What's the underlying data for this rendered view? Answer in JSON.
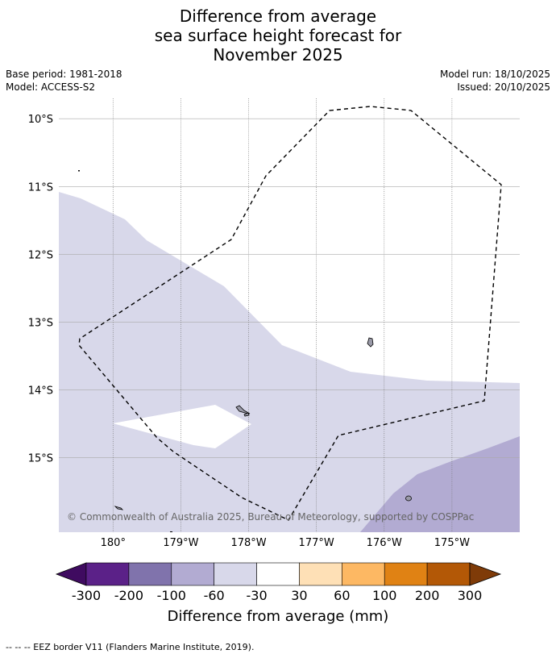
{
  "title": {
    "line1": "Difference from average",
    "line2": "sea surface height forecast for",
    "line3": "November 2025"
  },
  "meta": {
    "base_period": "Base period: 1981-2018",
    "model": "Model: ACCESS-S2",
    "model_run": "Model run: 18/10/2025",
    "issued": "Issued: 20/10/2025"
  },
  "map": {
    "lat_labels": [
      "10°S",
      "11°S",
      "12°S",
      "13°S",
      "14°S",
      "15°S"
    ],
    "lon_labels": [
      "180°",
      "179°W",
      "178°W",
      "177°W",
      "176°W",
      "175°W"
    ],
    "lat_values": [
      -10,
      -11,
      -12,
      -13,
      -14,
      -15
    ],
    "lon_values": [
      180,
      -179,
      -178,
      -177,
      -176,
      -175
    ],
    "extent": {
      "lon_min": -180.8,
      "lon_max": -174.0,
      "lat_min": -16.1,
      "lat_max": -9.7
    },
    "copyright": "© Commonwealth of Australia 2025, Bureau of Meteorology, supported by COSPPac",
    "colors": {
      "ocean": "#ffffff",
      "band_neg60_neg30": "#d8d8ea",
      "band_neg100_neg60": "#b2abd2",
      "land": "#9a9aa8",
      "eez_line": "#000000",
      "grid": "#aaaaaa"
    }
  },
  "colorbar": {
    "label": "Difference from average (mm)",
    "ticks": [
      "-300",
      "-200",
      "-100",
      "-60",
      "-30",
      "30",
      "60",
      "100",
      "200",
      "300"
    ],
    "colors": [
      "#3f0b60",
      "#5b2188",
      "#8073ac",
      "#b2abd2",
      "#d8d8ea",
      "#ffffff",
      "#fee0b6",
      "#fdb863",
      "#e08214",
      "#b35806",
      "#7f3b08"
    ]
  },
  "footnote": "--  --  -- EEZ border V11 (Flanders Marine Institute, 2019)."
}
